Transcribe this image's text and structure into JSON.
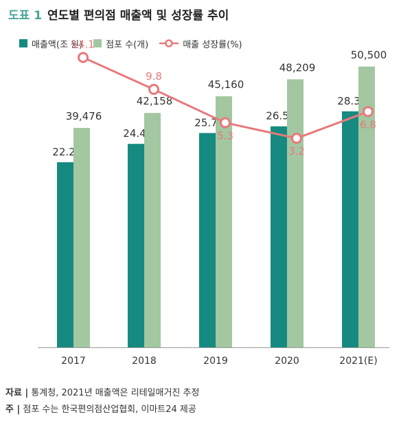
{
  "title": {
    "label": "도표 1",
    "text": "연도별 편의점 매출액 및 성장률 추이"
  },
  "legend": [
    {
      "name": "매출액(조 원)",
      "kind": "bar",
      "color": "#168a80"
    },
    {
      "name": "점포 수(개)",
      "kind": "bar",
      "color": "#a3c7a1"
    },
    {
      "name": "매출 성장률(%)",
      "kind": "line",
      "color": "#e8797a"
    }
  ],
  "chart_data": {
    "type": "bar",
    "categories": [
      "2017",
      "2018",
      "2019",
      "2020",
      "2021(E)"
    ],
    "series": [
      {
        "name": "매출액(조 원)",
        "kind": "bar",
        "values": [
          22.2,
          24.4,
          25.7,
          26.5,
          28.3
        ],
        "labels": [
          "22.2",
          "24.4",
          "25.7",
          "26.5",
          "28.3"
        ],
        "ylim": [
          0,
          40
        ]
      },
      {
        "name": "점포 수(개)",
        "kind": "bar",
        "values": [
          39476,
          42158,
          45160,
          48209,
          50500
        ],
        "labels": [
          "39,476",
          "42,158",
          "45,160",
          "48,209",
          "50,500"
        ],
        "ylim": [
          0,
          60000
        ]
      },
      {
        "name": "매출 성장률(%)",
        "kind": "line",
        "values": [
          14.1,
          9.8,
          5.3,
          3.2,
          6.8
        ],
        "labels": [
          "14.1",
          "9.8",
          "5.3",
          "3.2",
          "6.8"
        ],
        "ylim": [
          -25,
          20
        ]
      }
    ],
    "grid": false,
    "legend_position": "top-left"
  },
  "colors": {
    "sales": "#168a80",
    "stores": "#a3c7a1",
    "growth": "#e8797a",
    "axis": "#999999"
  },
  "notes": [
    {
      "key": "자료 |",
      "text": " 통계청, 2021년 매출액은 리테일매거진 추정"
    },
    {
      "key": "주 |",
      "text": " 점포 수는 한국편의점산업협회, 이마트24 제공"
    }
  ]
}
